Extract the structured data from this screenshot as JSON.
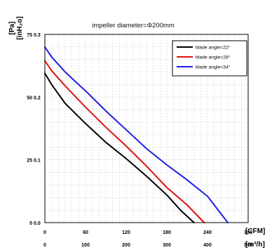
{
  "chart_data": {
    "type": "line",
    "title": "impeller diameter=Φ200mm",
    "y_units": {
      "primary": "[Pa]",
      "secondary": "[inH₂o]"
    },
    "x_units": {
      "primary": "[CFM]",
      "secondary": "[m³/h]"
    },
    "x_ticks_cfm": [
      "0",
      "60",
      "120",
      "180",
      "240",
      "300"
    ],
    "x_ticks_m3h": [
      "0",
      "100",
      "200",
      "300",
      "400",
      "500"
    ],
    "y_ticks_pa": [
      "0",
      "25",
      "50",
      "75"
    ],
    "y_ticks_inh2o": [
      "0.0",
      "0.1",
      "0.2",
      "0.3"
    ],
    "xlim": [
      0,
      300
    ],
    "ylim": [
      0,
      75
    ],
    "grid": true,
    "legend_position": "top-right",
    "series": [
      {
        "name": "blade angle=22°",
        "color": "#000000",
        "points": [
          [
            0,
            59.5
          ],
          [
            10,
            55
          ],
          [
            30,
            47.5
          ],
          [
            60,
            39.5
          ],
          [
            90,
            32
          ],
          [
            120,
            25.5
          ],
          [
            150,
            18.5
          ],
          [
            180,
            11
          ],
          [
            200,
            5
          ],
          [
            220,
            0
          ]
        ]
      },
      {
        "name": "blade angle=28°",
        "color": "#e01010",
        "points": [
          [
            0,
            64.5
          ],
          [
            10,
            60.5
          ],
          [
            30,
            54.5
          ],
          [
            60,
            46
          ],
          [
            90,
            38
          ],
          [
            120,
            30.5
          ],
          [
            150,
            22.5
          ],
          [
            180,
            14
          ],
          [
            210,
            7
          ],
          [
            235,
            0
          ]
        ]
      },
      {
        "name": "blade angle=34°",
        "color": "#1f1fe0",
        "points": [
          [
            0,
            70
          ],
          [
            10,
            66
          ],
          [
            30,
            60
          ],
          [
            60,
            52.5
          ],
          [
            90,
            44.5
          ],
          [
            120,
            37
          ],
          [
            150,
            29.5
          ],
          [
            180,
            23
          ],
          [
            210,
            17
          ],
          [
            240,
            10.5
          ],
          [
            270,
            0
          ]
        ]
      }
    ]
  }
}
